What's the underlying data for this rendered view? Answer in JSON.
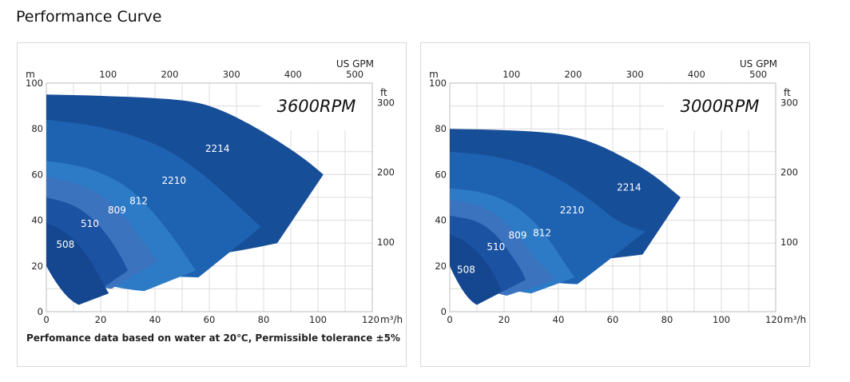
{
  "page": {
    "title": "Performance Curve"
  },
  "note": "Perfomance data based on water at 20℃, Permissible tolerance ±5%",
  "chart_data": [
    {
      "type": "area",
      "rpm_label": "3600RPM",
      "x_unit": "m³/h",
      "y_unit": "m",
      "x2_unit": "US GPM",
      "y2_unit": "ft",
      "xlim": [
        0,
        120
      ],
      "ylim": [
        0,
        100
      ],
      "x_ticks": [
        0,
        20,
        40,
        60,
        80,
        100,
        120
      ],
      "y_ticks": [
        0,
        20,
        40,
        60,
        80,
        100
      ],
      "x2_ticks": [
        100,
        200,
        300,
        400,
        500
      ],
      "y2_ticks": [
        100,
        200,
        300
      ],
      "grid": true,
      "series": [
        {
          "name": "2214",
          "color": "#174e98",
          "label_at": [
            63,
            70
          ],
          "top": [
            [
              0,
              95
            ],
            [
              20,
              94.5
            ],
            [
              40,
              93.5
            ],
            [
              55,
              92
            ],
            [
              65,
              88
            ],
            [
              75,
              82
            ],
            [
              85,
              75
            ],
            [
              95,
              67
            ],
            [
              102,
              60
            ]
          ],
          "bottom_end": [
            85,
            30
          ]
        },
        {
          "name": "2210",
          "color": "#1e62b2",
          "label_at": [
            47,
            56
          ],
          "top": [
            [
              0,
              84
            ],
            [
              15,
              82
            ],
            [
              30,
              78
            ],
            [
              45,
              71
            ],
            [
              58,
              60
            ],
            [
              70,
              47
            ],
            [
              79,
              37
            ]
          ],
          "bottom_end": [
            56,
            15
          ]
        },
        {
          "name": "812",
          "color": "#2d7ac6",
          "label_at": [
            34,
            47
          ],
          "top": [
            [
              0,
              66
            ],
            [
              12,
              64
            ],
            [
              22,
              60
            ],
            [
              32,
              53
            ],
            [
              42,
              40
            ],
            [
              50,
              27
            ],
            [
              55,
              18
            ]
          ],
          "bottom_end": [
            36,
            9
          ]
        },
        {
          "name": "809",
          "color": "#3c73bf",
          "label_at": [
            26,
            43
          ],
          "top": [
            [
              0,
              59
            ],
            [
              12,
              56
            ],
            [
              22,
              50
            ],
            [
              30,
              40
            ],
            [
              36,
              30
            ],
            [
              41,
              22
            ]
          ],
          "bottom_end": [
            24,
            10
          ]
        },
        {
          "name": "510",
          "color": "#1c52a2",
          "label_at": [
            16,
            37
          ],
          "top": [
            [
              0,
              50
            ],
            [
              10,
              47
            ],
            [
              18,
              40
            ],
            [
              24,
              31
            ],
            [
              28,
              23
            ],
            [
              30,
              18
            ]
          ],
          "bottom_end": [
            12,
            3
          ]
        },
        {
          "name": "508",
          "color": "#154790",
          "label_at": [
            7,
            28
          ],
          "top": [
            [
              0,
              39
            ],
            [
              7,
              35
            ],
            [
              13,
              28
            ],
            [
              18,
              19
            ],
            [
              21,
              12
            ],
            [
              23,
              8
            ]
          ],
          "bottom_end": [
            12,
            3
          ]
        }
      ]
    },
    {
      "type": "area",
      "rpm_label": "3000RPM",
      "x_unit": "m³/h",
      "y_unit": "m",
      "x2_unit": "US GPM",
      "y2_unit": "ft",
      "xlim": [
        0,
        120
      ],
      "ylim": [
        0,
        100
      ],
      "x_ticks": [
        0,
        20,
        40,
        60,
        80,
        100,
        120
      ],
      "y_ticks": [
        0,
        20,
        40,
        60,
        80,
        100
      ],
      "x2_ticks": [
        100,
        200,
        300,
        400,
        500
      ],
      "y2_ticks": [
        100,
        200,
        300
      ],
      "grid": true,
      "series": [
        {
          "name": "2214",
          "color": "#174e98",
          "label_at": [
            66,
            53
          ],
          "top": [
            [
              0,
              80
            ],
            [
              20,
              79.5
            ],
            [
              35,
              78.5
            ],
            [
              45,
              77
            ],
            [
              55,
              73
            ],
            [
              65,
              67
            ],
            [
              75,
              60
            ],
            [
              85,
              50
            ]
          ],
          "bottom_end": [
            71,
            25
          ]
        },
        {
          "name": "2210",
          "color": "#1e62b2",
          "label_at": [
            45,
            43
          ],
          "top": [
            [
              0,
              70
            ],
            [
              15,
              68.5
            ],
            [
              30,
              64
            ],
            [
              42,
              57
            ],
            [
              53,
              48
            ],
            [
              62,
              39
            ],
            [
              72,
              35
            ]
          ],
          "bottom_end": [
            47,
            12
          ]
        },
        {
          "name": "812",
          "color": "#2d7ac6",
          "label_at": [
            34,
            33
          ],
          "top": [
            [
              0,
              54
            ],
            [
              12,
              52.5
            ],
            [
              22,
              48
            ],
            [
              30,
              41
            ],
            [
              37,
              31
            ],
            [
              43,
              20
            ],
            [
              46,
              15
            ]
          ],
          "bottom_end": [
            30,
            8
          ]
        },
        {
          "name": "809",
          "color": "#3c73bf",
          "label_at": [
            25,
            32
          ],
          "top": [
            [
              0,
              49
            ],
            [
              10,
              47
            ],
            [
              18,
              42
            ],
            [
              24,
              35
            ],
            [
              29,
              27
            ],
            [
              34,
              20
            ],
            [
              39,
              14
            ]
          ],
          "bottom_end": [
            21,
            7
          ]
        },
        {
          "name": "510",
          "color": "#1c52a2",
          "label_at": [
            17,
            27
          ],
          "top": [
            [
              0,
              42
            ],
            [
              10,
              40
            ],
            [
              17,
              34
            ],
            [
              22,
              26
            ],
            [
              26,
              19
            ],
            [
              28,
              14
            ]
          ],
          "bottom_end": [
            10,
            3
          ]
        },
        {
          "name": "508",
          "color": "#154790",
          "label_at": [
            6,
            17
          ],
          "top": [
            [
              0,
              34
            ],
            [
              7,
              30
            ],
            [
              12,
              24
            ],
            [
              16,
              17
            ],
            [
              18,
              12
            ],
            [
              19,
              9
            ]
          ],
          "bottom_end": [
            10,
            3
          ]
        }
      ]
    }
  ]
}
